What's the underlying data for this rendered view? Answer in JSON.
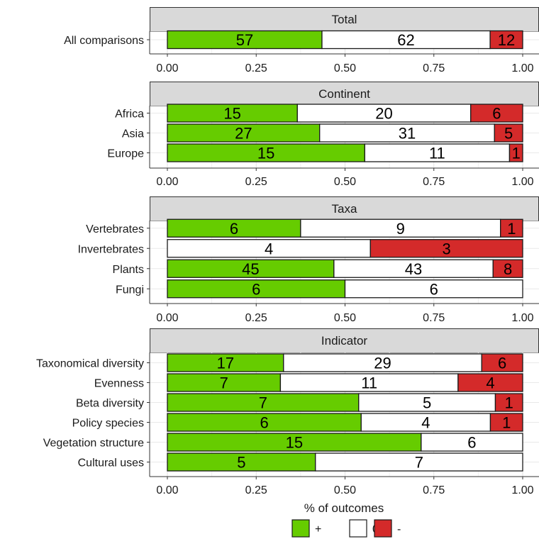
{
  "chart_data": {
    "type": "bar",
    "stacking": "proportional",
    "x_axis": {
      "label": "% of outcomes",
      "range": [
        0,
        1
      ],
      "ticks": [
        "0.00",
        "0.25",
        "0.50",
        "0.75",
        "1.00"
      ],
      "grid": true
    },
    "legend": {
      "placement": "bottom",
      "entries": [
        {
          "key": "pos",
          "label": "+",
          "color": "#66cc00"
        },
        {
          "key": "zero",
          "label": "0",
          "color": "#ffffff"
        },
        {
          "key": "neg",
          "label": "-",
          "color": "#d42a2a"
        }
      ]
    },
    "panels": [
      {
        "title": "Total",
        "rows": [
          {
            "label": "All comparisons",
            "pos": 57,
            "zero": 62,
            "neg": 12
          }
        ]
      },
      {
        "title": "Continent",
        "rows": [
          {
            "label": "Africa",
            "pos": 15,
            "zero": 20,
            "neg": 6
          },
          {
            "label": "Asia",
            "pos": 27,
            "zero": 31,
            "neg": 5
          },
          {
            "label": "Europe",
            "pos": 15,
            "zero": 11,
            "neg": 1
          }
        ]
      },
      {
        "title": "Taxa",
        "rows": [
          {
            "label": "Vertebrates",
            "pos": 6,
            "zero": 9,
            "neg": 1
          },
          {
            "label": "Invertebrates",
            "pos": 0,
            "zero": 4,
            "neg": 3
          },
          {
            "label": "Plants",
            "pos": 45,
            "zero": 43,
            "neg": 8
          },
          {
            "label": "Fungi",
            "pos": 6,
            "zero": 6,
            "neg": 0
          }
        ]
      },
      {
        "title": "Indicator",
        "rows": [
          {
            "label": "Taxonomical diversity",
            "pos": 17,
            "zero": 29,
            "neg": 6
          },
          {
            "label": "Evenness",
            "pos": 7,
            "zero": 11,
            "neg": 4
          },
          {
            "label": "Beta diversity",
            "pos": 7,
            "zero": 5,
            "neg": 1
          },
          {
            "label": "Policy species",
            "pos": 6,
            "zero": 4,
            "neg": 1
          },
          {
            "label": "Vegetation structure",
            "pos": 15,
            "zero": 6,
            "neg": 0
          },
          {
            "label": "Cultural uses",
            "pos": 5,
            "zero": 7,
            "neg": 0
          }
        ]
      }
    ]
  }
}
